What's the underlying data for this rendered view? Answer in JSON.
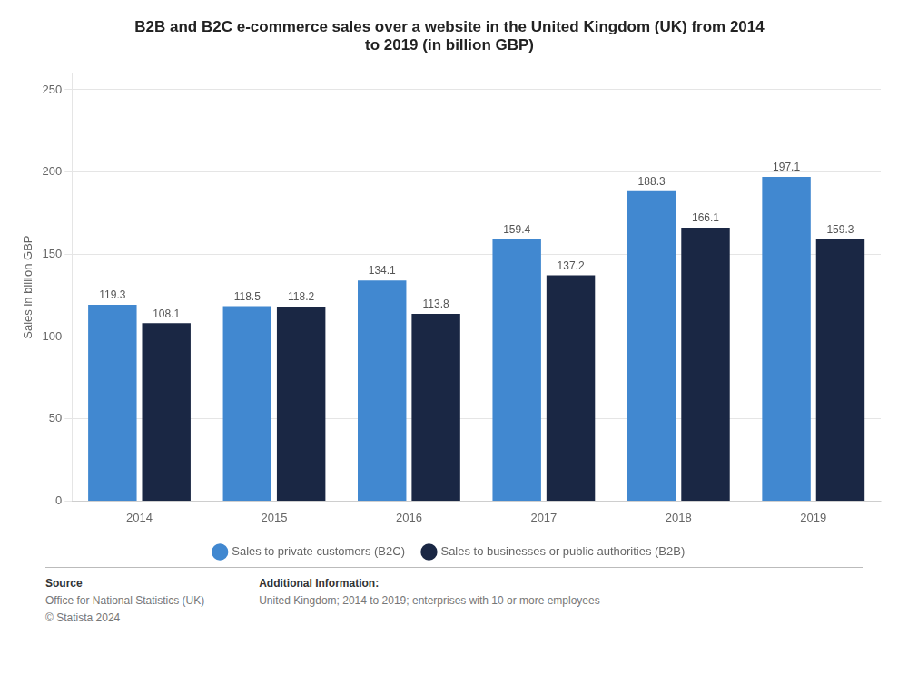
{
  "chart_data": {
    "type": "bar",
    "title": "B2B and B2C e-commerce sales over a website in the United Kingdom (UK) from 2014\nto 2019 (in billion GBP)",
    "y_label": "Sales in billion GBP",
    "categories": [
      "2014",
      "2015",
      "2016",
      "2017",
      "2018",
      "2019"
    ],
    "series": [
      {
        "name": "Sales to private customers (B2C)",
        "color": "#4188d0",
        "values": [
          119.3,
          118.5,
          134.1,
          159.4,
          188.3,
          197.1
        ]
      },
      {
        "name": "Sales to businesses or public authorities (B2B)",
        "color": "#1a2744",
        "values": [
          108.1,
          118.2,
          113.8,
          137.2,
          166.1,
          159.3
        ]
      }
    ],
    "ylim": [
      0,
      260
    ],
    "yticks": [
      0,
      50,
      100,
      150,
      200,
      250
    ],
    "grid": true,
    "legend": "bottom",
    "data_labels": true,
    "annotations": [
      {
        "text": [
          "Source",
          "Office for National Statistics (UK)",
          "© Statista 2024"
        ]
      },
      {
        "text": [
          "Additional Information:",
          "United Kingdom; 2014 to 2019; enterprises with 10 or more employees"
        ]
      }
    ]
  }
}
